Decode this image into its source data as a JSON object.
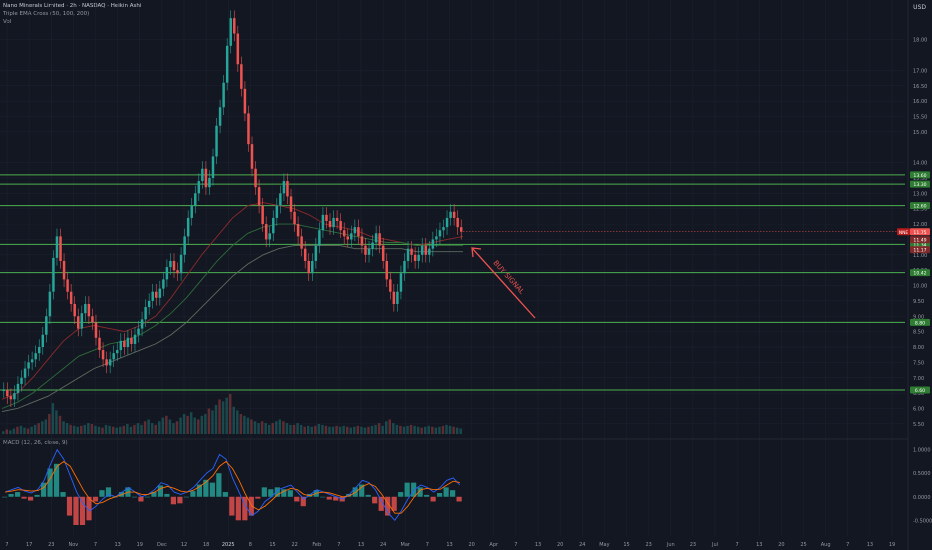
{
  "header": {
    "symbol_line": "Nano Minerals Limited · 2h · NASDAQ · Heikin Ashi",
    "indicator_line": "Triple EMA Cross (50, 100, 200)",
    "volume_label": "Vol",
    "macd_label": "MACD (12, 26, close, 9)",
    "currency": "USD"
  },
  "chart_data": [
    {
      "type": "candlestick",
      "title": "Nano Minerals Limited · 2h · NASDAQ · Heikin Ashi",
      "price_ticks": [
        "18.00",
        "17.00",
        "16.50",
        "16.00",
        "15.50",
        "15.00",
        "14.00",
        "13.50",
        "13.00",
        "12.50",
        "12.00",
        "11.50",
        "11.00",
        "10.50",
        "10.00",
        "9.50",
        "9.00",
        "8.50",
        "8.00",
        "7.50",
        "7.00",
        "6.50",
        "6.00",
        "5.50"
      ],
      "current_price_label": "NNE",
      "price_badges": [
        "11.75",
        "11.49",
        "11.17"
      ],
      "support_resistance_levels": [
        "13.60",
        "13.30",
        "12.60",
        "11.34",
        "10.42",
        "8.80",
        "6.60"
      ],
      "x_ticks": [
        "7",
        "17",
        "23",
        "Nov",
        "7",
        "13",
        "19",
        "Dec",
        "12",
        "18",
        "2025",
        "8",
        "15",
        "22",
        "Feb",
        "7",
        "13",
        "24",
        "Mar",
        "7",
        "13",
        "20",
        "Apr",
        "7",
        "13",
        "20",
        "24",
        "May",
        "15",
        "23",
        "Jun",
        "23",
        "Jul",
        "7",
        "13",
        "20",
        "25",
        "Aug",
        "7",
        "13",
        "19"
      ],
      "annotation": "BUY SIGNAL",
      "series": [
        {
          "name": "Price",
          "values": [
            6.6,
            6.4,
            6.3,
            6.5,
            6.8,
            7.0,
            7.3,
            7.5,
            7.6,
            7.8,
            8.0,
            8.4,
            9.0,
            9.8,
            10.9,
            11.6,
            10.8,
            10.2,
            9.8,
            9.4,
            9.0,
            8.6,
            9.1,
            9.4,
            9.0,
            8.8,
            8.3,
            7.9,
            7.6,
            7.4,
            7.6,
            7.8,
            7.9,
            8.2,
            8.0,
            8.3,
            8.1,
            8.4,
            8.6,
            8.9,
            9.3,
            9.5,
            9.8,
            9.6,
            9.9,
            10.2,
            10.6,
            10.8,
            10.5,
            10.4,
            11.0,
            11.6,
            12.2,
            12.6,
            13.0,
            13.4,
            13.8,
            13.2,
            13.5,
            14.2,
            15.2,
            15.8,
            16.6,
            17.8,
            18.7,
            18.2,
            17.2,
            16.4,
            15.6,
            14.6,
            13.8,
            13.2,
            12.6,
            12.0,
            11.5,
            11.7,
            12.2,
            12.6,
            13.0,
            13.4,
            12.9,
            12.4,
            12.0,
            11.6,
            11.2,
            10.8,
            10.4,
            10.8,
            11.3,
            11.8,
            12.3,
            12.1,
            11.9,
            12.2,
            12.1,
            11.8,
            11.6,
            11.5,
            11.7,
            11.9,
            11.6,
            11.3,
            11.0,
            11.2,
            11.4,
            11.7,
            11.3,
            10.8,
            10.2,
            9.8,
            9.4,
            9.8,
            10.4,
            10.8,
            11.2,
            11.0,
            10.8,
            11.0,
            11.3,
            11.0,
            11.2,
            11.5,
            11.6,
            11.8,
            11.9,
            12.2,
            12.4,
            12.2,
            11.9,
            11.75
          ]
        },
        {
          "name": "EMA 50",
          "values": [
            6.3,
            6.5,
            7.0,
            7.6,
            8.2,
            8.6,
            8.7,
            8.6,
            8.5,
            8.7,
            9.0,
            9.6,
            10.3,
            11.0,
            11.6,
            12.2,
            12.6,
            12.7,
            12.6,
            12.5,
            12.3,
            12.0,
            11.9,
            11.8,
            11.6,
            11.5,
            11.4,
            11.3,
            11.4,
            11.5,
            11.6
          ]
        },
        {
          "name": "EMA 100",
          "values": [
            6.0,
            6.2,
            6.5,
            6.9,
            7.3,
            7.7,
            7.9,
            8.1,
            8.2,
            8.4,
            8.7,
            9.1,
            9.6,
            10.2,
            10.8,
            11.3,
            11.7,
            11.9,
            12.0,
            12.0,
            11.9,
            11.8,
            11.7,
            11.6,
            11.5,
            11.4,
            11.4,
            11.3,
            11.3,
            11.3,
            11.3
          ]
        },
        {
          "name": "EMA 200",
          "values": [
            5.9,
            6.0,
            6.2,
            6.4,
            6.7,
            7.0,
            7.3,
            7.5,
            7.7,
            7.9,
            8.1,
            8.4,
            8.8,
            9.3,
            9.8,
            10.3,
            10.7,
            11.0,
            11.2,
            11.3,
            11.3,
            11.3,
            11.3,
            11.2,
            11.2,
            11.2,
            11.2,
            11.1,
            11.1,
            11.1,
            11.1
          ]
        }
      ]
    },
    {
      "type": "bar",
      "title": "Vol",
      "values": [
        3,
        5,
        4,
        6,
        8,
        9,
        7,
        6,
        8,
        10,
        12,
        14,
        16,
        22,
        34,
        26,
        20,
        14,
        12,
        10,
        9,
        8,
        9,
        10,
        12,
        11,
        9,
        8,
        7,
        10,
        9,
        8,
        7,
        8,
        9,
        11,
        8,
        10,
        12,
        10,
        14,
        16,
        12,
        10,
        14,
        18,
        20,
        16,
        12,
        14,
        18,
        22,
        20,
        24,
        18,
        16,
        20,
        22,
        28,
        26,
        32,
        38,
        36,
        40,
        44,
        30,
        26,
        22,
        20,
        18,
        16,
        14,
        12,
        14,
        12,
        10,
        12,
        14,
        16,
        14,
        12,
        10,
        10,
        12,
        10,
        8,
        9,
        8,
        9,
        11,
        10,
        9,
        8,
        8,
        9,
        8,
        9,
        8,
        7,
        8,
        9,
        8,
        7,
        8,
        9,
        10,
        12,
        9,
        14,
        16,
        12,
        10,
        9,
        8,
        9,
        10,
        9,
        8,
        7,
        8,
        9,
        8,
        7,
        8,
        9,
        10,
        9,
        8,
        7,
        6
      ]
    },
    {
      "type": "bar",
      "title": "MACD (12, 26, close, 9)",
      "y_ticks": [
        "1.0000",
        "0.5000",
        "0.0000",
        "-0.5000"
      ],
      "series": [
        {
          "name": "MACD",
          "values": [
            0.1,
            0.15,
            0.2,
            0.12,
            0.08,
            0.15,
            0.35,
            0.7,
            1.0,
            0.8,
            0.45,
            0.1,
            -0.15,
            -0.3,
            -0.2,
            -0.05,
            0.05,
            0.0,
            0.1,
            0.2,
            0.1,
            0.0,
            0.05,
            0.15,
            0.3,
            0.25,
            0.1,
            0.05,
            0.1,
            0.2,
            0.35,
            0.5,
            0.6,
            0.9,
            0.8,
            0.4,
            0.1,
            -0.2,
            -0.4,
            -0.3,
            -0.1,
            0.0,
            0.15,
            0.2,
            0.25,
            0.1,
            -0.05,
            0.05,
            0.15,
            0.1,
            0.05,
            0.0,
            -0.05,
            0.05,
            0.2,
            0.35,
            0.3,
            0.15,
            -0.1,
            -0.35,
            -0.5,
            -0.3,
            -0.05,
            0.15,
            0.25,
            0.2,
            0.1,
            0.2,
            0.35,
            0.4,
            0.25
          ]
        },
        {
          "name": "Signal",
          "values": [
            0.1,
            0.12,
            0.15,
            0.14,
            0.12,
            0.13,
            0.2,
            0.4,
            0.65,
            0.75,
            0.65,
            0.4,
            0.15,
            -0.05,
            -0.15,
            -0.12,
            -0.05,
            0.0,
            0.05,
            0.1,
            0.1,
            0.05,
            0.05,
            0.1,
            0.18,
            0.22,
            0.18,
            0.12,
            0.1,
            0.14,
            0.22,
            0.32,
            0.45,
            0.65,
            0.75,
            0.6,
            0.35,
            0.05,
            -0.2,
            -0.28,
            -0.2,
            -0.08,
            0.05,
            0.12,
            0.18,
            0.15,
            0.05,
            0.02,
            0.08,
            0.1,
            0.08,
            0.04,
            0.0,
            0.02,
            0.1,
            0.22,
            0.28,
            0.22,
            0.05,
            -0.15,
            -0.35,
            -0.35,
            -0.2,
            0.0,
            0.15,
            0.18,
            0.15,
            0.16,
            0.25,
            0.33,
            0.3
          ]
        }
      ]
    }
  ],
  "colors": {
    "background": "#131722",
    "grid": "#1f2332",
    "level_line": "#4caf50",
    "level_badge": "#2e7d32",
    "up_candle": "#26a69a",
    "down_candle": "#ef5350",
    "ema_fast": "#8a2a2a",
    "ema_mid": "#2f6b3a",
    "ema_slow": "#5f6b5f",
    "macd_line": "#2962ff",
    "signal_line": "#ff6d00",
    "arrow": "#ef5350",
    "price_badge": "#ef5350",
    "price_badge_dark": "#7f2a2a",
    "nne_badge": "#b71c1c"
  }
}
